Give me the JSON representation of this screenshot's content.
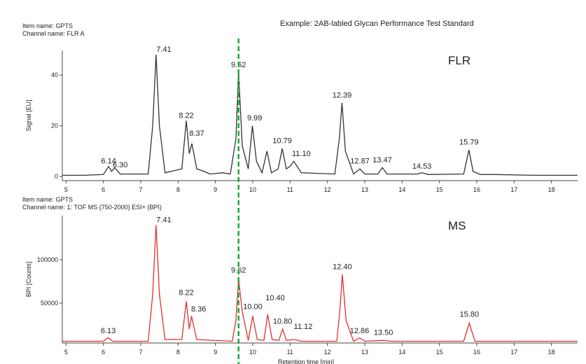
{
  "title": "Example:  2AB-labled Glycan Performance Test Standard",
  "chart_data": [
    {
      "type": "line",
      "item_name": "Item name: GPTS",
      "channel_name": "Channel name: FLR A",
      "ylabel": "Signal [EU]",
      "xlim": [
        4.9,
        18.7
      ],
      "ylim": [
        -1.6,
        49.7
      ],
      "xticks": [
        5,
        6,
        7,
        8,
        9,
        10,
        11,
        12,
        13,
        14,
        15,
        16,
        17,
        18
      ],
      "yticks": [
        0,
        20,
        40
      ],
      "reference_x": 9.62,
      "reference_color": "#1aa83a",
      "x": [
        4.9,
        5.5,
        6.0,
        6.14,
        6.22,
        6.3,
        6.45,
        7.2,
        7.32,
        7.41,
        7.5,
        7.65,
        8.1,
        8.22,
        8.3,
        8.37,
        8.5,
        8.7,
        8.85,
        9.2,
        9.4,
        9.55,
        9.62,
        9.72,
        9.88,
        9.99,
        10.1,
        10.25,
        10.38,
        10.5,
        10.68,
        10.79,
        10.9,
        11.0,
        11.1,
        11.3,
        12.2,
        12.32,
        12.39,
        12.48,
        12.7,
        12.87,
        13.0,
        13.35,
        13.47,
        13.6,
        14.4,
        14.53,
        14.7,
        15.65,
        15.79,
        15.9,
        16.1,
        16.5,
        17.5,
        18.7
      ],
      "series": [
        {
          "name": "FLR",
          "color": "#333333",
          "values": [
            0.5,
            0.5,
            0.8,
            4,
            2,
            3.5,
            1,
            1,
            20,
            48,
            20,
            1.5,
            3,
            22,
            9,
            13,
            3,
            2,
            1,
            1.5,
            1,
            15,
            41,
            12,
            3,
            20,
            6,
            1.5,
            10,
            1.5,
            3,
            11,
            3,
            4,
            6,
            1.5,
            1,
            15,
            29,
            10,
            1,
            3,
            1,
            1,
            3.5,
            1,
            1,
            1.5,
            0.8,
            1,
            10.5,
            2,
            0.8,
            0.8,
            0.5,
            0.5
          ]
        }
      ],
      "annotations": [
        {
          "label": "6.14",
          "x": 6.14,
          "y": 4
        },
        {
          "label": "6.30",
          "x": 6.45,
          "y": 2.5
        },
        {
          "label": "7.41",
          "x": 7.62,
          "y": 48
        },
        {
          "label": "8.22",
          "x": 8.22,
          "y": 22
        },
        {
          "label": "8.37",
          "x": 8.5,
          "y": 15
        },
        {
          "label": "9.62",
          "x": 9.62,
          "y": 42
        },
        {
          "label": "9.99",
          "x": 10.05,
          "y": 21
        },
        {
          "label": "10.79",
          "x": 10.79,
          "y": 12
        },
        {
          "label": "11.10",
          "x": 11.3,
          "y": 7
        },
        {
          "label": "12.39",
          "x": 12.39,
          "y": 30
        },
        {
          "label": "12.87",
          "x": 12.87,
          "y": 4
        },
        {
          "label": "13.47",
          "x": 13.47,
          "y": 4.5
        },
        {
          "label": "14.53",
          "x": 14.53,
          "y": 2
        },
        {
          "label": "15.79",
          "x": 15.79,
          "y": 11.5
        }
      ]
    },
    {
      "type": "line",
      "item_name": "Item name: GPTS",
      "channel_name": "Channel name: 1: TOF MS (750-2000) ESI+ (BPI)",
      "ylabel": "BPI [Counts]",
      "xlabel": "Retention time [min]",
      "xlim": [
        4.9,
        18.7
      ],
      "ylim": [
        4000,
        150800
      ],
      "xticks": [
        5,
        6,
        7,
        8,
        9,
        10,
        11,
        12,
        13,
        14,
        15,
        16,
        17,
        18
      ],
      "yticks": [
        50000,
        100000
      ],
      "reference_x": 9.62,
      "reference_color": "#1aa83a",
      "x": [
        4.9,
        6.0,
        6.13,
        6.25,
        7.2,
        7.32,
        7.41,
        7.5,
        7.65,
        8.1,
        8.22,
        8.3,
        8.36,
        8.5,
        9.45,
        9.55,
        9.62,
        9.72,
        9.88,
        10.0,
        10.12,
        10.3,
        10.4,
        10.52,
        10.7,
        10.8,
        10.9,
        11.12,
        11.3,
        12.25,
        12.33,
        12.4,
        12.5,
        12.7,
        12.86,
        13.0,
        13.5,
        13.7,
        15.65,
        15.8,
        15.95,
        18.7
      ],
      "series": [
        {
          "name": "MS",
          "color": "#e03030",
          "values": [
            6000,
            6000,
            10000,
            6000,
            6000,
            60000,
            140000,
            60000,
            8000,
            8000,
            52000,
            20000,
            35000,
            8000,
            6000,
            30000,
            78000,
            40000,
            7000,
            35000,
            8000,
            7000,
            37000,
            8000,
            7000,
            20000,
            7000,
            8000,
            6000,
            6000,
            40000,
            83000,
            30000,
            6000,
            10000,
            6000,
            7000,
            6000,
            6000,
            27000,
            6000,
            6000
          ]
        }
      ],
      "annotations": [
        {
          "label": "6.13",
          "x": 6.13,
          "y": 12000
        },
        {
          "label": "7.41",
          "x": 7.62,
          "y": 140000
        },
        {
          "label": "8.22",
          "x": 8.22,
          "y": 56000
        },
        {
          "label": "8.36",
          "x": 8.55,
          "y": 37000
        },
        {
          "label": "9.62",
          "x": 9.62,
          "y": 82000
        },
        {
          "label": "10.00",
          "x": 10.0,
          "y": 40000
        },
        {
          "label": "10.40",
          "x": 10.6,
          "y": 50000
        },
        {
          "label": "10.80",
          "x": 10.8,
          "y": 23000
        },
        {
          "label": "11.12",
          "x": 11.35,
          "y": 17000
        },
        {
          "label": "12.40",
          "x": 12.4,
          "y": 86000
        },
        {
          "label": "12.86",
          "x": 12.86,
          "y": 12000
        },
        {
          "label": "13.50",
          "x": 13.5,
          "y": 10000
        },
        {
          "label": "15.80",
          "x": 15.8,
          "y": 31000
        }
      ]
    }
  ]
}
